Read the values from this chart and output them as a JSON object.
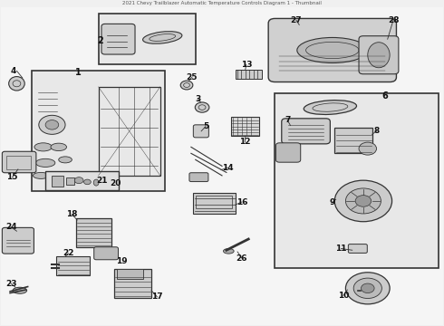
{
  "bg_color": "#f0f0f0",
  "line_color": "#333333",
  "title": "2021 Chevy Trailblazer Automatic Temperature Controls Diagram 1 - Thumbnail"
}
